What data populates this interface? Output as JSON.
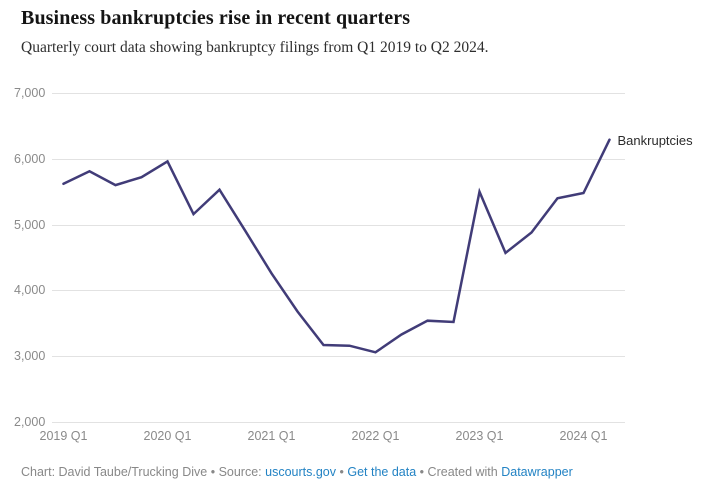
{
  "header": {
    "title": "Business bankruptcies rise in recent quarters",
    "subtitle": "Quarterly court data showing bankruptcy filings from Q1 2019 to Q2 2024."
  },
  "chart_data": {
    "type": "line",
    "title": "Business bankruptcies rise in recent quarters",
    "subtitle": "Quarterly court data showing bankruptcy filings from Q1 2019 to Q2 2024.",
    "x": [
      "2019 Q1",
      "2019 Q2",
      "2019 Q3",
      "2019 Q4",
      "2020 Q1",
      "2020 Q2",
      "2020 Q3",
      "2020 Q4",
      "2021 Q1",
      "2021 Q2",
      "2021 Q3",
      "2021 Q4",
      "2022 Q1",
      "2022 Q2",
      "2022 Q3",
      "2022 Q4",
      "2023 Q1",
      "2023 Q2",
      "2023 Q3",
      "2023 Q4",
      "2024 Q1",
      "2024 Q2"
    ],
    "series": [
      {
        "name": "Bankruptcies",
        "color": "#413c78",
        "values": [
          5620,
          5810,
          5600,
          5720,
          5960,
          5160,
          5530,
          4900,
          4260,
          3680,
          3170,
          3160,
          3060,
          3330,
          3540,
          3520,
          5500,
          4570,
          4880,
          5400,
          5480,
          6290
        ]
      }
    ],
    "ylim": [
      2000,
      7000
    ],
    "y_ticks": [
      7000,
      6000,
      5000,
      4000,
      3000,
      2000
    ],
    "y_tick_labels": [
      "7,000",
      "6,000",
      "5,000",
      "4,000",
      "3,000",
      "2,000"
    ],
    "x_tick_indices": [
      0,
      4,
      8,
      12,
      16,
      20
    ],
    "x_tick_labels": [
      "2019 Q1",
      "2020 Q1",
      "2021 Q1",
      "2022 Q1",
      "2023 Q1",
      "2024 Q1"
    ],
    "grid": "horizontal",
    "legend_position": "end-of-line",
    "grid_color": "#e2e2e2",
    "axis_text_color": "#8a8a8a"
  },
  "footer": {
    "credit": "Chart: David Taube/Trucking Dive",
    "separator": "•",
    "source_label": "Source:",
    "source_link": "uscourts.gov",
    "get_data_link": "Get the data",
    "created_with_label": "Created with",
    "datawrapper_link": "Datawrapper",
    "link_color": "#2383c4"
  }
}
